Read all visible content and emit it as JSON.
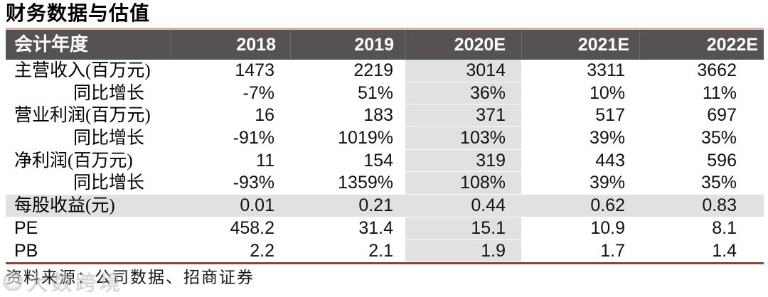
{
  "title": "财务数据与估值",
  "table": {
    "highlight_col": 2,
    "header": {
      "label": "会计年度",
      "years": [
        "2018",
        "2019",
        "2020E",
        "2021E",
        "2022E"
      ]
    },
    "rows": [
      {
        "label": "主营收入(百万元)",
        "indent": false,
        "highlight": false,
        "values": [
          "1473",
          "2219",
          "3014",
          "3311",
          "3662"
        ]
      },
      {
        "label": "同比增长",
        "indent": true,
        "highlight": false,
        "values": [
          "-7%",
          "51%",
          "36%",
          "10%",
          "11%"
        ]
      },
      {
        "label": "营业利润(百万元)",
        "indent": false,
        "highlight": false,
        "values": [
          "16",
          "183",
          "371",
          "517",
          "697"
        ]
      },
      {
        "label": "同比增长",
        "indent": true,
        "highlight": false,
        "values": [
          "-91%",
          "1019%",
          "103%",
          "39%",
          "35%"
        ]
      },
      {
        "label": "净利润(百万元)",
        "indent": false,
        "highlight": false,
        "values": [
          "11",
          "154",
          "319",
          "443",
          "596"
        ]
      },
      {
        "label": "同比增长",
        "indent": true,
        "highlight": false,
        "values": [
          "-93%",
          "1359%",
          "108%",
          "39%",
          "35%"
        ]
      },
      {
        "label": "每股收益(元)",
        "indent": false,
        "highlight": true,
        "values": [
          "0.01",
          "0.21",
          "0.44",
          "0.62",
          "0.83"
        ]
      },
      {
        "label": "PE",
        "indent": false,
        "highlight": false,
        "values": [
          "458.2",
          "31.4",
          "15.1",
          "10.9",
          "8.1"
        ]
      },
      {
        "label": "PB",
        "indent": false,
        "highlight": false,
        "values": [
          "2.2",
          "2.1",
          "1.9",
          "1.7",
          "1.4"
        ]
      }
    ]
  },
  "footer": {
    "source_text": "资料来源：公司数据、招商证券"
  },
  "watermark": {
    "text": "大数跨境"
  },
  "colors": {
    "header_bg": "#575252",
    "header_text": "#ffffff",
    "top_border": "#d9afa5",
    "bottom_border": "#8a4236",
    "highlight_fill": "#e2e1e1",
    "watermark_gray": "#aeb3ba"
  }
}
